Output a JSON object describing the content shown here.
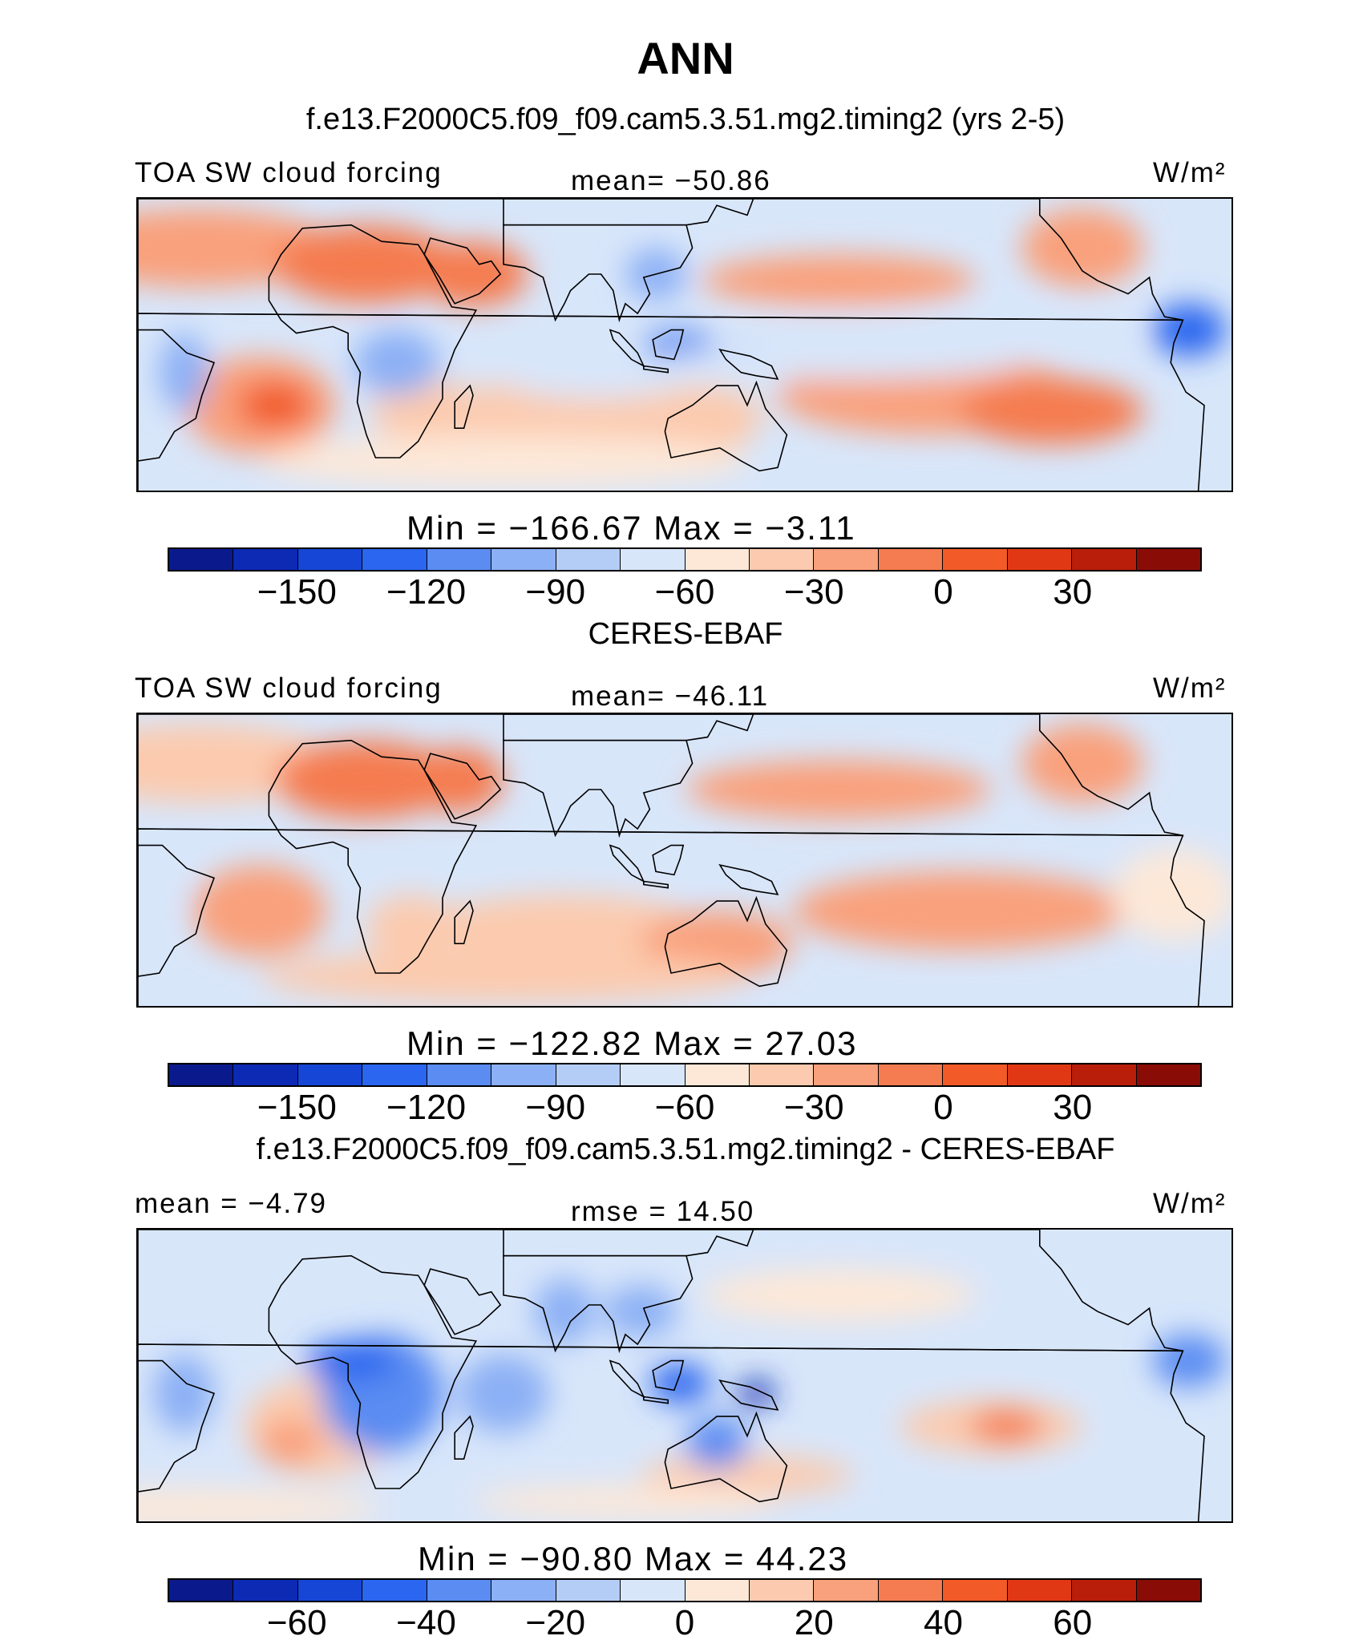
{
  "title": "ANN",
  "colors": [
    "#0a1a8c",
    "#0c2ab4",
    "#1546d6",
    "#2a66ef",
    "#5a8cf2",
    "#8cb0f5",
    "#b4cdf7",
    "#d8e6fa",
    "#fde8d8",
    "#fccaae",
    "#f9a07c",
    "#f57c50",
    "#f25a28",
    "#e03814",
    "#b81e0a",
    "#8a0c06"
  ],
  "chart_data": [
    {
      "type": "heatmap",
      "case": "f.e13.F2000C5.f09_f09.cam5.3.51.mg2.timing2 (yrs 2-5)",
      "variable": "TOA SW cloud forcing",
      "center_label": "mean=  −50.86",
      "units": "W/m²",
      "min": -166.67,
      "max": -3.11,
      "minmax_text": "Min  =  −166.67  Max  =   −3.11",
      "colorbar_levels": [
        -160,
        -150,
        -140,
        -120,
        -110,
        -100,
        -90,
        -80,
        -70,
        -60,
        -50,
        -40,
        -30,
        -20,
        -10,
        0,
        10,
        20,
        30,
        40
      ],
      "colorbar_ticks": [
        -150,
        -120,
        -90,
        -60,
        -30,
        0,
        30
      ],
      "colorbar_tick_labels": [
        "−150",
        "−120",
        "−90",
        "−60",
        "−30",
        "0",
        "30"
      ],
      "colorbar_range": [
        -180,
        60
      ]
    },
    {
      "type": "heatmap",
      "case": "CERES-EBAF",
      "variable": "TOA SW cloud forcing",
      "center_label": "mean=  −46.11",
      "units": "W/m²",
      "min": -122.82,
      "max": 27.03,
      "minmax_text": "Min  =  −122.82  Max  =   27.03",
      "colorbar_ticks": [
        -150,
        -120,
        -90,
        -60,
        -30,
        0,
        30
      ],
      "colorbar_tick_labels": [
        "−150",
        "−120",
        "−90",
        "−60",
        "−30",
        "0",
        "30"
      ],
      "colorbar_range": [
        -180,
        60
      ]
    },
    {
      "type": "heatmap",
      "case": "f.e13.F2000C5.f09_f09.cam5.3.51.mg2.timing2 - CERES-EBAF",
      "left_label": "mean  =   −4.79",
      "center_label": "rmse  =   14.50",
      "units": "W/m²",
      "min": -90.8,
      "max": 44.23,
      "minmax_text": "Min  =  −90.80  Max  =   44.23",
      "colorbar_ticks": [
        -60,
        -40,
        -20,
        0,
        20,
        40,
        60
      ],
      "colorbar_tick_labels": [
        "−60",
        "−40",
        "−20",
        "0",
        "20",
        "40",
        "60"
      ],
      "colorbar_range": [
        -80,
        80
      ]
    }
  ]
}
